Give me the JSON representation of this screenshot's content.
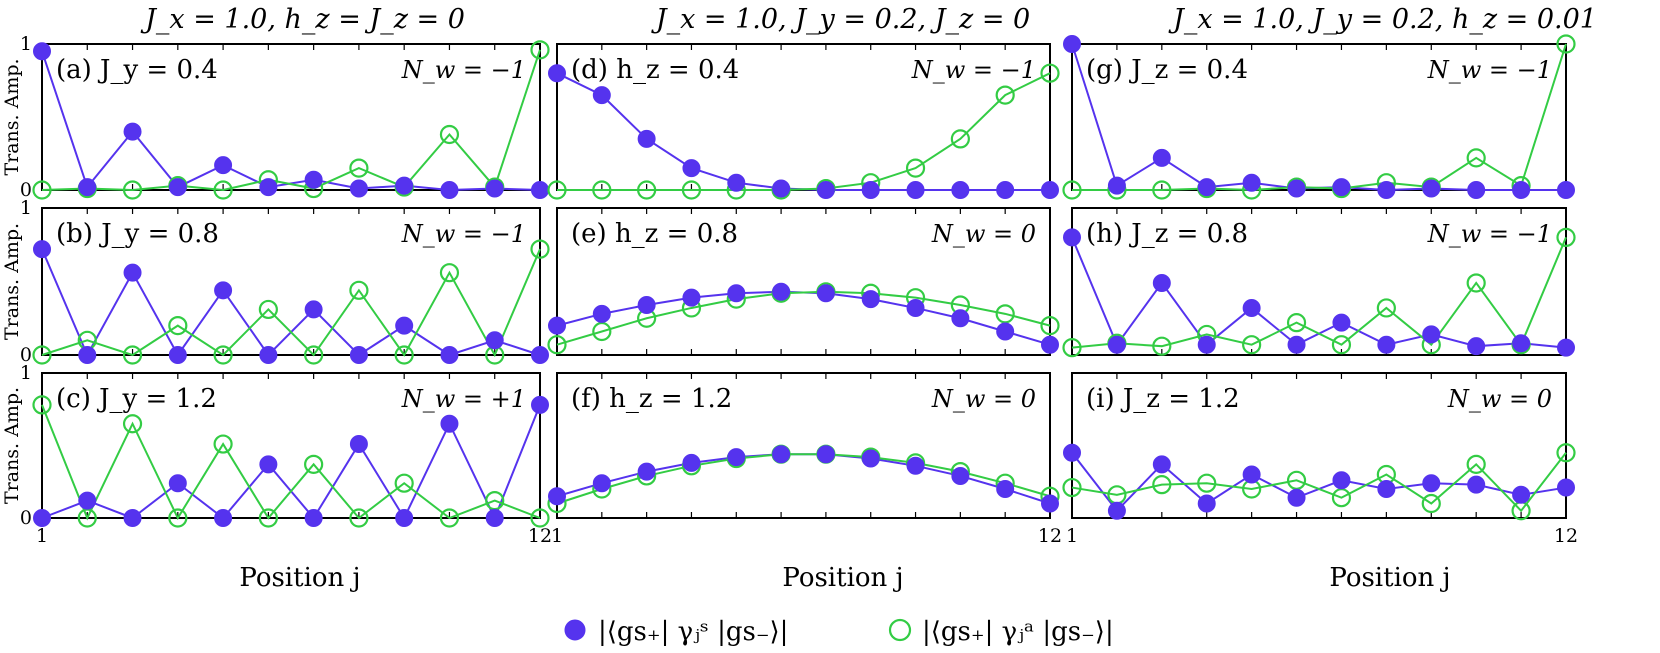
{
  "columns": [
    {
      "title": "J_x = 1.0, h_z = J_z = 0"
    },
    {
      "title": "J_x = 1.0, J_y = 0.2, J_z = 0"
    },
    {
      "title": "J_x = 1.0, J_y = 0.2, h_z = 0.01"
    }
  ],
  "axes": {
    "ylabel": "Trans. Amp.",
    "xlabel": "Position j",
    "x_ticks": [
      "1",
      "12"
    ],
    "y_ticks": [
      "0",
      "1"
    ]
  },
  "legend": [
    {
      "label": "|⟨gs₊| γⱼˢ |gs₋⟩|",
      "marker": "filled-circle",
      "color": "#5533ee"
    },
    {
      "label": "|⟨gs₊| γⱼᵃ |gs₋⟩|",
      "marker": "open-circle",
      "color": "#33cc44"
    }
  ],
  "colors": {
    "series_s": "#5533ee",
    "series_a": "#33cc44"
  },
  "chart_data": [
    {
      "type": "line",
      "label": "(a) J_y = 0.4",
      "nw": "N_w = −1",
      "x": [
        1,
        2,
        3,
        4,
        5,
        6,
        7,
        8,
        9,
        10,
        11,
        12
      ],
      "ylim": [
        0,
        1
      ],
      "series": [
        {
          "values": [
            0.95,
            0.02,
            0.4,
            0.02,
            0.17,
            0.02,
            0.07,
            0.01,
            0.03,
            0.0,
            0.01,
            0.0
          ]
        },
        {
          "values": [
            0.0,
            0.01,
            0.0,
            0.03,
            0.0,
            0.07,
            0.01,
            0.15,
            0.02,
            0.38,
            0.02,
            0.96
          ]
        }
      ]
    },
    {
      "type": "line",
      "label": "(b) J_y = 0.8",
      "nw": "N_w = −1",
      "x": [
        1,
        2,
        3,
        4,
        5,
        6,
        7,
        8,
        9,
        10,
        11,
        12
      ],
      "ylim": [
        0,
        1
      ],
      "series": [
        {
          "values": [
            0.72,
            0.0,
            0.56,
            0.0,
            0.44,
            0.0,
            0.31,
            0.0,
            0.2,
            0.0,
            0.1,
            0.0
          ]
        },
        {
          "values": [
            0.0,
            0.1,
            0.0,
            0.2,
            0.0,
            0.31,
            0.0,
            0.44,
            0.0,
            0.56,
            0.0,
            0.72
          ]
        }
      ]
    },
    {
      "type": "line",
      "label": "(c) J_y = 1.2",
      "nw": "N_w = +1",
      "x": [
        1,
        2,
        3,
        4,
        5,
        6,
        7,
        8,
        9,
        10,
        11,
        12
      ],
      "ylim": [
        0,
        1
      ],
      "series": [
        {
          "values": [
            0.0,
            0.12,
            0.0,
            0.24,
            0.0,
            0.37,
            0.0,
            0.51,
            0.0,
            0.65,
            0.0,
            0.78
          ]
        },
        {
          "values": [
            0.78,
            0.0,
            0.65,
            0.0,
            0.51,
            0.0,
            0.37,
            0.0,
            0.24,
            0.0,
            0.12,
            0.0
          ]
        }
      ]
    },
    {
      "type": "line",
      "label": "(d) h_z = 0.4",
      "nw": "N_w = −1",
      "x": [
        1,
        2,
        3,
        4,
        5,
        6,
        7,
        8,
        9,
        10,
        11,
        12
      ],
      "ylim": [
        0,
        1
      ],
      "series": [
        {
          "values": [
            0.8,
            0.65,
            0.35,
            0.15,
            0.05,
            0.01,
            0.0,
            0.0,
            0.0,
            0.0,
            0.0,
            0.0
          ]
        },
        {
          "values": [
            0.0,
            0.0,
            0.0,
            0.0,
            0.0,
            0.0,
            0.01,
            0.05,
            0.15,
            0.35,
            0.65,
            0.8
          ]
        }
      ]
    },
    {
      "type": "line",
      "label": "(e) h_z = 0.8",
      "nw": "N_w = 0",
      "x": [
        1,
        2,
        3,
        4,
        5,
        6,
        7,
        8,
        9,
        10,
        11,
        12
      ],
      "ylim": [
        0,
        1
      ],
      "series": [
        {
          "values": [
            0.2,
            0.28,
            0.34,
            0.39,
            0.42,
            0.43,
            0.42,
            0.38,
            0.32,
            0.25,
            0.16,
            0.07
          ]
        },
        {
          "values": [
            0.07,
            0.16,
            0.25,
            0.32,
            0.38,
            0.42,
            0.43,
            0.42,
            0.39,
            0.34,
            0.28,
            0.2
          ]
        }
      ]
    },
    {
      "type": "line",
      "label": "(f) h_z = 1.2",
      "nw": "N_w = 0",
      "x": [
        1,
        2,
        3,
        4,
        5,
        6,
        7,
        8,
        9,
        10,
        11,
        12
      ],
      "ylim": [
        0,
        1
      ],
      "series": [
        {
          "values": [
            0.15,
            0.24,
            0.32,
            0.38,
            0.42,
            0.44,
            0.44,
            0.41,
            0.36,
            0.29,
            0.2,
            0.1
          ]
        },
        {
          "values": [
            0.1,
            0.2,
            0.29,
            0.36,
            0.41,
            0.44,
            0.44,
            0.42,
            0.38,
            0.32,
            0.24,
            0.15
          ]
        }
      ]
    },
    {
      "type": "line",
      "label": "(g) J_z = 0.4",
      "nw": "N_w = −1",
      "x": [
        1,
        2,
        3,
        4,
        5,
        6,
        7,
        8,
        9,
        10,
        11,
        12
      ],
      "ylim": [
        0,
        1
      ],
      "series": [
        {
          "values": [
            1.0,
            0.03,
            0.22,
            0.02,
            0.05,
            0.01,
            0.02,
            0.0,
            0.01,
            0.0,
            0.0,
            0.0
          ]
        },
        {
          "values": [
            0.0,
            0.0,
            0.0,
            0.01,
            0.0,
            0.02,
            0.01,
            0.05,
            0.02,
            0.22,
            0.03,
            1.0
          ]
        }
      ]
    },
    {
      "type": "line",
      "label": "(h) J_z = 0.8",
      "nw": "N_w = −1",
      "x": [
        1,
        2,
        3,
        4,
        5,
        6,
        7,
        8,
        9,
        10,
        11,
        12
      ],
      "ylim": [
        0,
        1
      ],
      "series": [
        {
          "values": [
            0.8,
            0.07,
            0.49,
            0.07,
            0.32,
            0.07,
            0.22,
            0.07,
            0.14,
            0.06,
            0.08,
            0.05
          ]
        },
        {
          "values": [
            0.05,
            0.08,
            0.06,
            0.14,
            0.07,
            0.22,
            0.07,
            0.32,
            0.07,
            0.49,
            0.07,
            0.8
          ]
        }
      ]
    },
    {
      "type": "line",
      "label": "(i) J_z = 1.2",
      "nw": "N_w = 0",
      "x": [
        1,
        2,
        3,
        4,
        5,
        6,
        7,
        8,
        9,
        10,
        11,
        12
      ],
      "ylim": [
        0,
        1
      ],
      "series": [
        {
          "values": [
            0.45,
            0.05,
            0.37,
            0.1,
            0.3,
            0.14,
            0.26,
            0.2,
            0.24,
            0.23,
            0.16,
            0.21
          ]
        },
        {
          "values": [
            0.21,
            0.16,
            0.23,
            0.24,
            0.2,
            0.26,
            0.14,
            0.3,
            0.1,
            0.37,
            0.05,
            0.45
          ]
        }
      ]
    }
  ]
}
